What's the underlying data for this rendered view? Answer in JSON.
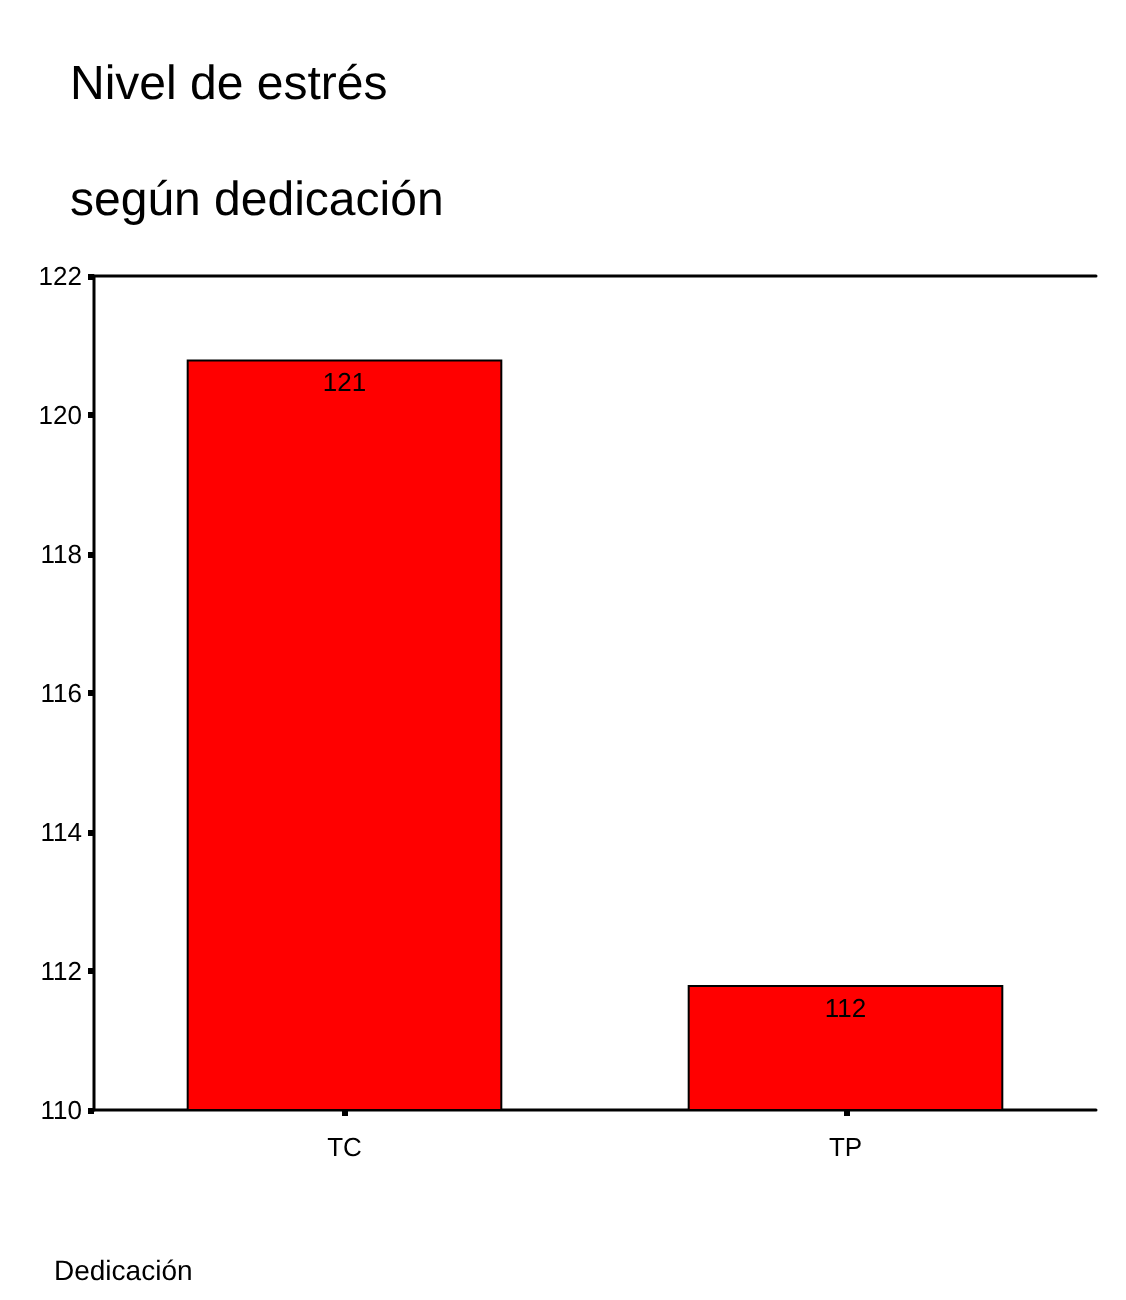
{
  "chart_data": {
    "type": "bar",
    "title": "Nivel de estrés\nsegún dedicación",
    "xlabel": "Dedicación",
    "categories": [
      "TC",
      "TP"
    ],
    "values": [
      120.8,
      111.8
    ],
    "value_labels": [
      "121",
      "112"
    ],
    "color": "#ff0000",
    "ylim": [
      110,
      122
    ],
    "yticks": [
      110,
      112,
      114,
      116,
      118,
      120,
      122
    ]
  }
}
